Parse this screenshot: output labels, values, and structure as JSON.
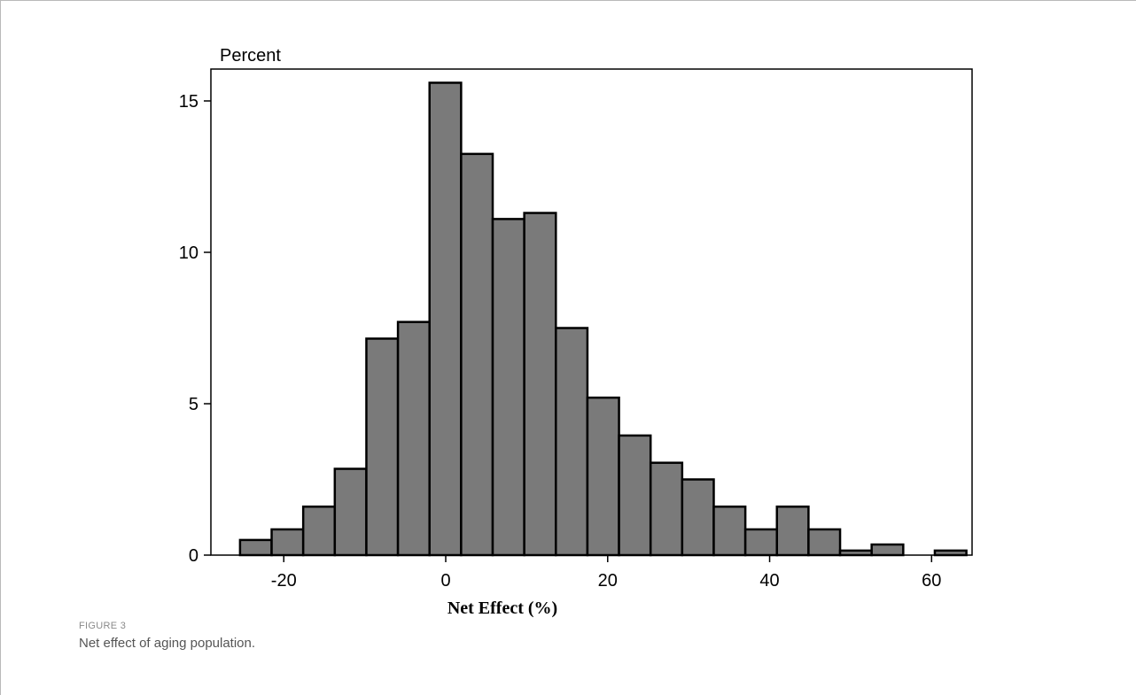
{
  "chart_data": {
    "type": "bar",
    "ylabel": "Percent",
    "xlabel": "Net Effect (%)",
    "xlim": [
      -29,
      65
    ],
    "ylim": [
      0,
      15.5
    ],
    "xticks": [
      -20,
      0,
      20,
      40,
      60
    ],
    "yticks": [
      0,
      5,
      10,
      15
    ],
    "tick_labels_x": [
      "-20",
      "0",
      "20",
      "40",
      "60"
    ],
    "tick_labels_y": [
      "0",
      "5",
      "10",
      "15"
    ],
    "bin_width": 3.9,
    "bins": [
      {
        "x0": -25.4,
        "value": 0.5
      },
      {
        "x0": -21.5,
        "value": 0.85
      },
      {
        "x0": -17.6,
        "value": 1.6
      },
      {
        "x0": -13.7,
        "value": 2.85
      },
      {
        "x0": -9.8,
        "value": 7.15
      },
      {
        "x0": -5.9,
        "value": 7.7
      },
      {
        "x0": -2.0,
        "value": 15.6
      },
      {
        "x0": 1.9,
        "value": 13.25
      },
      {
        "x0": 5.8,
        "value": 11.1
      },
      {
        "x0": 9.7,
        "value": 11.3
      },
      {
        "x0": 13.6,
        "value": 7.5
      },
      {
        "x0": 17.5,
        "value": 5.2
      },
      {
        "x0": 21.4,
        "value": 3.95
      },
      {
        "x0": 25.3,
        "value": 3.05
      },
      {
        "x0": 29.2,
        "value": 2.5
      },
      {
        "x0": 33.1,
        "value": 1.6
      },
      {
        "x0": 37.0,
        "value": 0.85
      },
      {
        "x0": 40.9,
        "value": 1.6
      },
      {
        "x0": 44.8,
        "value": 0.85
      },
      {
        "x0": 48.7,
        "value": 0.15
      },
      {
        "x0": 52.6,
        "value": 0.35
      },
      {
        "x0": 60.4,
        "value": 0.15
      }
    ],
    "bar_color": "#7a7a7a",
    "bar_edge_color": "#000000",
    "grid": false
  },
  "caption": {
    "label": "FIGURE 3",
    "text": "Net effect of aging population."
  }
}
